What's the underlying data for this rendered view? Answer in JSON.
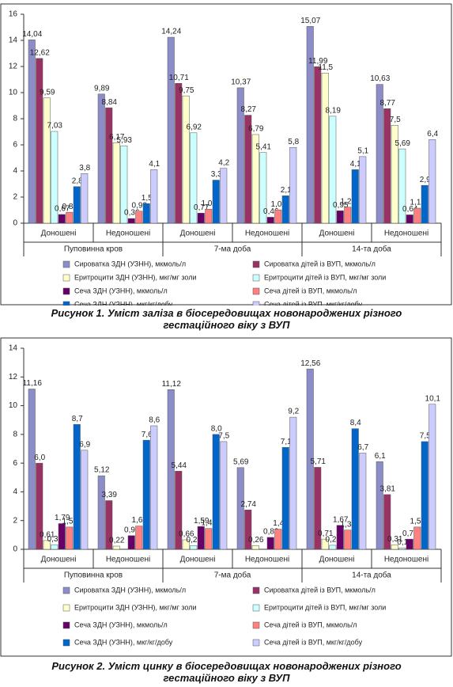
{
  "chart_data": [
    {
      "type": "bar",
      "caption": "Рисунок 1. Уміст заліза в біосередовищах новонароджених різного гестаційного віку з ВУП",
      "categories": [
        "Доношені",
        "Недоношені",
        "Доношені",
        "Недоношені",
        "Доношені",
        "Недоношені"
      ],
      "groups": [
        "Пуповинна кров",
        "7-ма доба",
        "14-та доба"
      ],
      "ylim": [
        0,
        16
      ],
      "yticks": [
        0,
        2,
        4,
        6,
        8,
        10,
        12,
        14,
        16
      ],
      "series": [
        {
          "name": "Сироватка ЗДН (УЗНН), мкмоль/л",
          "color": "#8c8cc8",
          "values": [
            14.04,
            9.89,
            14.24,
            10.37,
            15.07,
            10.63
          ],
          "value_labels": [
            "14,04",
            "9,89",
            "14,24",
            "10,37",
            "15,07",
            "10,63"
          ]
        },
        {
          "name": "Сироватка дітей із ВУП, мкмоль/л",
          "color": "#993366",
          "values": [
            12.62,
            8.84,
            10.71,
            8.27,
            11.99,
            8.77
          ],
          "value_labels": [
            "12,62",
            "8,84",
            "10,71",
            "8,27",
            "11,99",
            "8,77"
          ]
        },
        {
          "name": "Еритроцити ЗДН (УЗНН), мкг/мг золи",
          "color": "#ffffcc",
          "values": [
            9.59,
            6.17,
            9.75,
            6.79,
            11.5,
            7.5
          ],
          "value_labels": [
            "9,59",
            "6,17",
            "9,75",
            "6,79",
            "11,5",
            "7,5"
          ]
        },
        {
          "name": "Еритроцити дітей із ВУП, мкг/мг золи",
          "color": "#ccffff",
          "values": [
            7.03,
            5.93,
            6.92,
            5.41,
            8.19,
            5.69
          ],
          "value_labels": [
            "7,03",
            "5,93",
            "6,92",
            "5,41",
            "8,19",
            "5,69"
          ]
        },
        {
          "name": "Сеча ЗДН (УЗНН), мкмоль/л",
          "color": "#660066",
          "values": [
            0.67,
            0.36,
            0.77,
            0.46,
            0.95,
            0.64
          ],
          "value_labels": [
            "0,67",
            "0,36",
            "0,77",
            "0,46",
            "0,95",
            "0,64"
          ]
        },
        {
          "name": "Сеча дітей із ВУП, мкмоль/л",
          "color": "#ff8080",
          "values": [
            0.84,
            0.92,
            1.07,
            1.02,
            1.23,
            1.15
          ],
          "value_labels": [
            "0,84",
            "0,92",
            "1,07",
            "1,02",
            "1,23",
            "1,15"
          ]
        },
        {
          "name": "Сеча ЗДН (УЗНН), мкг/кг/добу",
          "color": "#0066cc",
          "values": [
            2.8,
            1.5,
            3.3,
            2.1,
            4.1,
            2.9
          ],
          "value_labels": [
            "2,8",
            "1,5",
            "3,3",
            "2,1",
            "4,1",
            "2,9"
          ]
        },
        {
          "name": "Сеча дітей із ВУП, мкг/кг/добу",
          "color": "#ccccff",
          "values": [
            3.8,
            4.1,
            4.2,
            5.8,
            5.1,
            6.4
          ],
          "value_labels": [
            "3,8",
            "4,1",
            "4,2",
            "5,8",
            "5,1",
            "6,4"
          ]
        }
      ]
    },
    {
      "type": "bar",
      "caption": "Рисунок 2. Уміст цинку в біосередовищах новонароджених різного гестаційного віку з ВУП",
      "categories": [
        "Доношені",
        "Недоношені",
        "Доношені",
        "Недоношені",
        "Доношені",
        "Недоношені"
      ],
      "groups": [
        "Пуповинна кров",
        "7-ма доба",
        "14-та доба"
      ],
      "ylim": [
        0,
        14
      ],
      "yticks": [
        0,
        2,
        4,
        6,
        8,
        10,
        12,
        14
      ],
      "series": [
        {
          "name": "Сироватка ЗДН (УЗНН), мкмоль/л",
          "color": "#8c8cc8",
          "values": [
            11.16,
            5.12,
            11.12,
            5.69,
            12.56,
            6.1
          ],
          "value_labels": [
            "11,16",
            "5,12",
            "11,12",
            "5,69",
            "12,56",
            "6,1"
          ]
        },
        {
          "name": "Сироватка дітей із ВУП, мкмоль/л",
          "color": "#993366",
          "values": [
            6.0,
            3.39,
            5.44,
            2.74,
            5.71,
            3.81
          ],
          "value_labels": [
            "6,0",
            "3,39",
            "5,44",
            "2,74",
            "5,71",
            "3,81"
          ]
        },
        {
          "name": "Еритроцити ЗДН (УЗНН), мкг/мг золи",
          "color": "#ffffcc",
          "values": [
            0.61,
            0.22,
            0.66,
            0.26,
            0.71,
            0.31
          ],
          "value_labels": [
            "0,61",
            "0,22",
            "0,66",
            "0,26",
            "0,71",
            "0,31"
          ]
        },
        {
          "name": "Еритроцити дітей із ВУП, мкг/мг золи",
          "color": "#ccffff",
          "values": [
            0.32,
            null,
            0.26,
            null,
            0.28,
            0.1
          ],
          "value_labels": [
            "0,32",
            null,
            "0,26",
            null,
            "0,28",
            "0,1"
          ]
        },
        {
          "name": "Сеча ЗДН (УЗНН), мкмоль/л",
          "color": "#660066",
          "values": [
            1.79,
            0.95,
            1.59,
            0.83,
            1.67,
            0.71
          ],
          "value_labels": [
            "1,79",
            "0,95",
            "1,59",
            "0,83",
            "1,67",
            "0,71"
          ]
        },
        {
          "name": "Сеча дітей із ВУП, мкмоль/л",
          "color": "#ff8080",
          "values": [
            1.55,
            1.62,
            1.45,
            1.4,
            1.34,
            1.55
          ],
          "value_labels": [
            "1,55",
            "1,62",
            "1,45",
            "1,4",
            "1,34",
            "1,55"
          ]
        },
        {
          "name": "Сеча ЗДН (УЗНН), мкг/кг/добу",
          "color": "#0066cc",
          "values": [
            8.7,
            7.6,
            8.0,
            7.1,
            8.4,
            7.5
          ],
          "value_labels": [
            "8,7",
            "7,6",
            "8,0",
            "7,1",
            "8,4",
            "7,5"
          ]
        },
        {
          "name": "Сеча дітей із ВУП, мкг/кг/добу",
          "color": "#ccccff",
          "values": [
            6.9,
            8.6,
            7.5,
            9.2,
            6.7,
            10.1
          ],
          "value_labels": [
            "6,9",
            "8,6",
            "7,5",
            "9,2",
            "6,7",
            "10,1"
          ]
        }
      ]
    }
  ]
}
